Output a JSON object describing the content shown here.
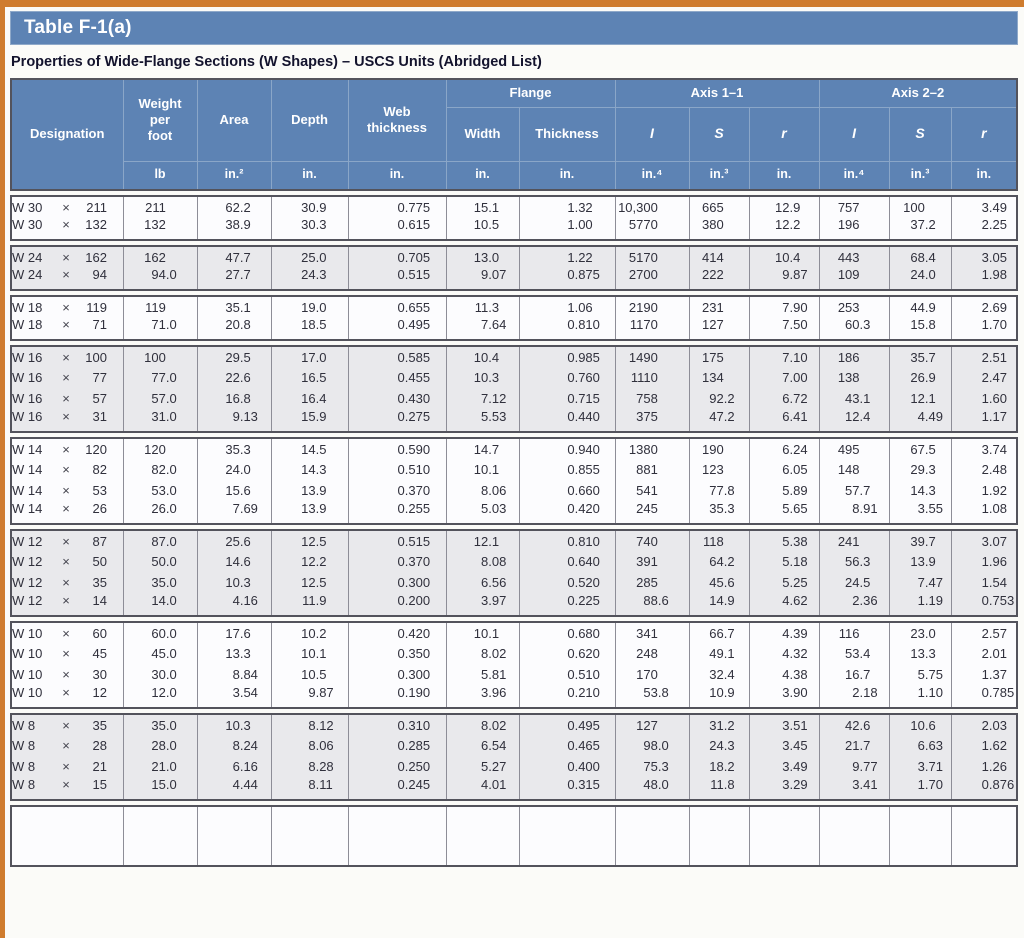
{
  "page": {
    "title": "Table F-1(a)",
    "subtitle": "Properties of Wide-Flange Sections (W Shapes) – USCS Units (Abridged List)"
  },
  "colors": {
    "accent_orange": "#cf7c2e",
    "header_blue": "#5d83b4",
    "alt_group_bg": "#e9e9ec",
    "block_border": "#53535c"
  },
  "table": {
    "header": {
      "designation_label": "Designation",
      "col_labels": {
        "weight": "Weight\nper\nfoot",
        "area": "Area",
        "depth": "Depth",
        "web": "Web\nthickness",
        "width": "Width",
        "thickness": "Thickness",
        "i": "I",
        "s": "S",
        "r": "r"
      },
      "group_labels": {
        "flange": "Flange",
        "axis1": "Axis 1–1",
        "axis2": "Axis 2–2"
      },
      "units": {
        "weight": "lb",
        "area": "in.²",
        "depth": "in.",
        "web": "in.",
        "width": "in.",
        "thickness": "in.",
        "i4": "in.⁴",
        "s3": "in.³",
        "r": "in."
      }
    },
    "columns_order": [
      "weight_lb",
      "area_in2",
      "depth_in",
      "web_thickness_in",
      "flange_width_in",
      "flange_thickness_in",
      "axis1_I_in4",
      "axis1_S_in3",
      "axis1_r_in",
      "axis2_I_in4",
      "axis2_S_in3",
      "axis2_r_in"
    ],
    "groups": [
      {
        "rows": [
          {
            "designation": "W 30 × 211",
            "values": [
              "211",
              "62.2",
              "30.9",
              "0.775",
              "15.1",
              "1.32",
              "10,300",
              "665",
              "12.9",
              "757",
              "100",
              "3.49"
            ]
          },
          {
            "designation": "W 30 × 132",
            "values": [
              "132",
              "38.9",
              "30.3",
              "0.615",
              "10.5",
              "1.00",
              "5770",
              "380",
              "12.2",
              "196",
              "37.2",
              "2.25"
            ]
          }
        ]
      },
      {
        "rows": [
          {
            "designation": "W 24 × 162",
            "values": [
              "162",
              "47.7",
              "25.0",
              "0.705",
              "13.0",
              "1.22",
              "5170",
              "414",
              "10.4",
              "443",
              "68.4",
              "3.05"
            ]
          },
          {
            "designation": "W 24 × 94",
            "values": [
              "94.0",
              "27.7",
              "24.3",
              "0.515",
              "9.07",
              "0.875",
              "2700",
              "222",
              "9.87",
              "109",
              "24.0",
              "1.98"
            ]
          }
        ]
      },
      {
        "rows": [
          {
            "designation": "W 18 × 119",
            "values": [
              "119",
              "35.1",
              "19.0",
              "0.655",
              "11.3",
              "1.06",
              "2190",
              "231",
              "7.90",
              "253",
              "44.9",
              "2.69"
            ]
          },
          {
            "designation": "W 18 × 71",
            "values": [
              "71.0",
              "20.8",
              "18.5",
              "0.495",
              "7.64",
              "0.810",
              "1170",
              "127",
              "7.50",
              "60.3",
              "15.8",
              "1.70"
            ]
          }
        ]
      },
      {
        "rows": [
          {
            "designation": "W 16 × 100",
            "values": [
              "100",
              "29.5",
              "17.0",
              "0.585",
              "10.4",
              "0.985",
              "1490",
              "175",
              "7.10",
              "186",
              "35.7",
              "2.51"
            ]
          },
          {
            "designation": "W 16 × 77",
            "values": [
              "77.0",
              "22.6",
              "16.5",
              "0.455",
              "10.3",
              "0.760",
              "1110",
              "134",
              "7.00",
              "138",
              "26.9",
              "2.47"
            ]
          },
          {
            "designation": "W 16 × 57",
            "values": [
              "57.0",
              "16.8",
              "16.4",
              "0.430",
              "7.12",
              "0.715",
              "758",
              "92.2",
              "6.72",
              "43.1",
              "12.1",
              "1.60"
            ]
          },
          {
            "designation": "W 16 × 31",
            "values": [
              "31.0",
              "9.13",
              "15.9",
              "0.275",
              "5.53",
              "0.440",
              "375",
              "47.2",
              "6.41",
              "12.4",
              "4.49",
              "1.17"
            ]
          }
        ]
      },
      {
        "rows": [
          {
            "designation": "W 14 × 120",
            "values": [
              "120",
              "35.3",
              "14.5",
              "0.590",
              "14.7",
              "0.940",
              "1380",
              "190",
              "6.24",
              "495",
              "67.5",
              "3.74"
            ]
          },
          {
            "designation": "W 14 × 82",
            "values": [
              "82.0",
              "24.0",
              "14.3",
              "0.510",
              "10.1",
              "0.855",
              "881",
              "123",
              "6.05",
              "148",
              "29.3",
              "2.48"
            ]
          },
          {
            "designation": "W 14 × 53",
            "values": [
              "53.0",
              "15.6",
              "13.9",
              "0.370",
              "8.06",
              "0.660",
              "541",
              "77.8",
              "5.89",
              "57.7",
              "14.3",
              "1.92"
            ]
          },
          {
            "designation": "W 14 × 26",
            "values": [
              "26.0",
              "7.69",
              "13.9",
              "0.255",
              "5.03",
              "0.420",
              "245",
              "35.3",
              "5.65",
              "8.91",
              "3.55",
              "1.08"
            ]
          }
        ]
      },
      {
        "rows": [
          {
            "designation": "W 12 × 87",
            "values": [
              "87.0",
              "25.6",
              "12.5",
              "0.515",
              "12.1",
              "0.810",
              "740",
              "118",
              "5.38",
              "241",
              "39.7",
              "3.07"
            ]
          },
          {
            "designation": "W 12 × 50",
            "values": [
              "50.0",
              "14.6",
              "12.2",
              "0.370",
              "8.08",
              "0.640",
              "391",
              "64.2",
              "5.18",
              "56.3",
              "13.9",
              "1.96"
            ]
          },
          {
            "designation": "W 12 × 35",
            "values": [
              "35.0",
              "10.3",
              "12.5",
              "0.300",
              "6.56",
              "0.520",
              "285",
              "45.6",
              "5.25",
              "24.5",
              "7.47",
              "1.54"
            ]
          },
          {
            "designation": "W 12 × 14",
            "values": [
              "14.0",
              "4.16",
              "11.9",
              "0.200",
              "3.97",
              "0.225",
              "88.6",
              "14.9",
              "4.62",
              "2.36",
              "1.19",
              "0.753"
            ]
          }
        ]
      },
      {
        "rows": [
          {
            "designation": "W 10 × 60",
            "values": [
              "60.0",
              "17.6",
              "10.2",
              "0.420",
              "10.1",
              "0.680",
              "341",
              "66.7",
              "4.39",
              "116",
              "23.0",
              "2.57"
            ]
          },
          {
            "designation": "W 10 × 45",
            "values": [
              "45.0",
              "13.3",
              "10.1",
              "0.350",
              "8.02",
              "0.620",
              "248",
              "49.1",
              "4.32",
              "53.4",
              "13.3",
              "2.01"
            ]
          },
          {
            "designation": "W 10 × 30",
            "values": [
              "30.0",
              "8.84",
              "10.5",
              "0.300",
              "5.81",
              "0.510",
              "170",
              "32.4",
              "4.38",
              "16.7",
              "5.75",
              "1.37"
            ]
          },
          {
            "designation": "W 10 × 12",
            "values": [
              "12.0",
              "3.54",
              "9.87",
              "0.190",
              "3.96",
              "0.210",
              "53.8",
              "10.9",
              "3.90",
              "2.18",
              "1.10",
              "0.785"
            ]
          }
        ]
      },
      {
        "rows": [
          {
            "designation": "W 8 × 35",
            "values": [
              "35.0",
              "10.3",
              "8.12",
              "0.310",
              "8.02",
              "0.495",
              "127",
              "31.2",
              "3.51",
              "42.6",
              "10.6",
              "2.03"
            ]
          },
          {
            "designation": "W 8 × 28",
            "values": [
              "28.0",
              "8.24",
              "8.06",
              "0.285",
              "6.54",
              "0.465",
              "98.0",
              "24.3",
              "3.45",
              "21.7",
              "6.63",
              "1.62"
            ]
          },
          {
            "designation": "W 8 × 21",
            "values": [
              "21.0",
              "6.16",
              "8.28",
              "0.250",
              "5.27",
              "0.400",
              "75.3",
              "18.2",
              "3.49",
              "9.77",
              "3.71",
              "1.26"
            ]
          },
          {
            "designation": "W 8 × 15",
            "values": [
              "15.0",
              "4.44",
              "8.11",
              "0.245",
              "4.01",
              "0.315",
              "48.0",
              "11.8",
              "3.29",
              "3.41",
              "1.70",
              "0.876"
            ]
          }
        ]
      }
    ]
  }
}
